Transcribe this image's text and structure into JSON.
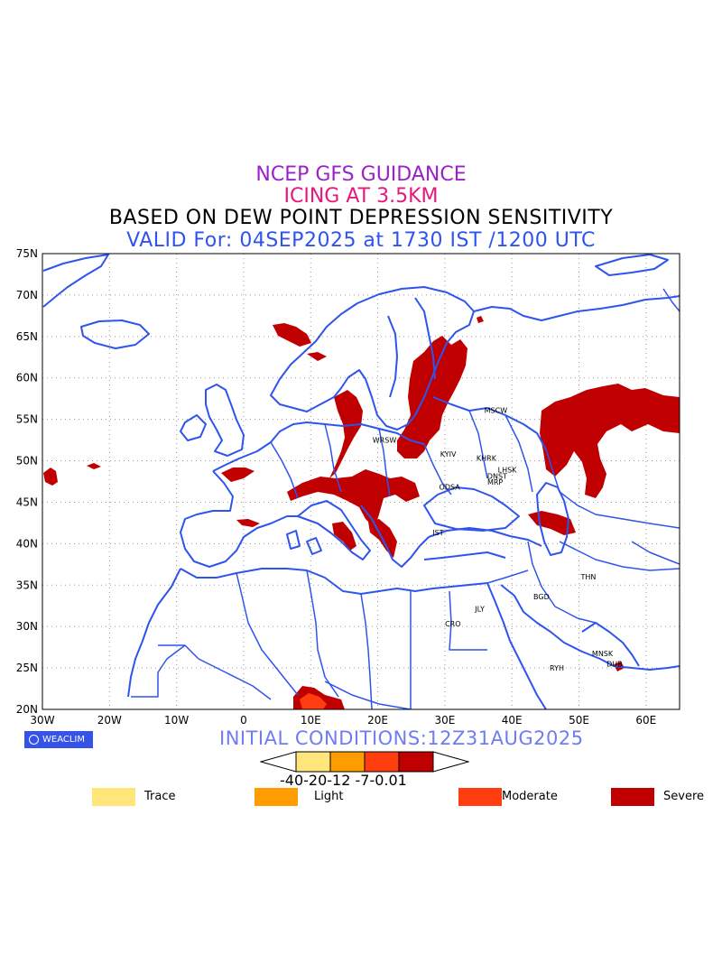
{
  "titles": {
    "line1": "NCEP GFS GUIDANCE",
    "line2": "ICING AT 3.5KM",
    "line3": "BASED ON DEW POINT DEPRESSION SENSITIVITY",
    "line4": "VALID For: 04SEP2025 at 1730 IST /1200 UTC"
  },
  "axes": {
    "lat_labels": [
      "75N",
      "70N",
      "65N",
      "60N",
      "55N",
      "50N",
      "45N",
      "40N",
      "35N",
      "30N",
      "25N",
      "20N"
    ],
    "lon_labels": [
      "30W",
      "20W",
      "10W",
      "0",
      "10E",
      "20E",
      "30E",
      "40E",
      "50E",
      "60E"
    ],
    "lat_range": [
      20,
      75
    ],
    "lon_range": [
      -30,
      65
    ],
    "grid": true
  },
  "cities": [
    {
      "name": "MSCW",
      "lon": 37.6,
      "lat": 55.8
    },
    {
      "name": "WRSW",
      "lon": 21.0,
      "lat": 52.2
    },
    {
      "name": "KYIV",
      "lon": 30.5,
      "lat": 50.5
    },
    {
      "name": "KHRK",
      "lon": 36.2,
      "lat": 50.0
    },
    {
      "name": "LHSK",
      "lon": 39.3,
      "lat": 48.6
    },
    {
      "name": "DNST",
      "lon": 37.8,
      "lat": 47.8
    },
    {
      "name": "MRP",
      "lon": 37.5,
      "lat": 47.1
    },
    {
      "name": "ODSA",
      "lon": 30.7,
      "lat": 46.5
    },
    {
      "name": "IST",
      "lon": 29.0,
      "lat": 41.0
    },
    {
      "name": "THN",
      "lon": 51.4,
      "lat": 35.7
    },
    {
      "name": "BGD",
      "lon": 44.4,
      "lat": 33.3
    },
    {
      "name": "JLY",
      "lon": 35.2,
      "lat": 31.8
    },
    {
      "name": "CRO",
      "lon": 31.2,
      "lat": 30.0
    },
    {
      "name": "MNSK",
      "lon": 53.5,
      "lat": 26.4
    },
    {
      "name": "RYH",
      "lon": 46.7,
      "lat": 24.7
    },
    {
      "name": "DUB",
      "lon": 55.3,
      "lat": 25.2
    }
  ],
  "branding": {
    "label": "WEACLIM"
  },
  "initial_conditions": "INITIAL CONDITIONS:12Z31AUG2025",
  "colorbar": {
    "ticks_text": "-40-20-12 -7-0.01",
    "colors": [
      "#ffe57a",
      "#ff9d00",
      "#ff3d0f",
      "#c00000"
    ]
  },
  "legend": [
    {
      "label": "Trace",
      "color": "#ffe57a"
    },
    {
      "label": "Light",
      "color": "#ff9d00"
    },
    {
      "label": "Moderate",
      "color": "#ff3d0f"
    },
    {
      "label": "Severe",
      "color": "#c00000"
    }
  ],
  "colors": {
    "coast": "#2f54ee",
    "grid": "#9a9a9a",
    "severe": "#c00000",
    "moderate": "#ff3d0f"
  }
}
